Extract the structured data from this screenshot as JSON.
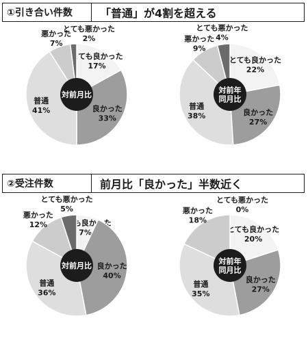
{
  "panels": [
    {
      "label": "①引き合い件数",
      "headline": "「普通」が4割を超える"
    },
    {
      "label": "②受注件数",
      "headline": "前月比「良かった」半数近く"
    }
  ],
  "colors": {
    "とても良かった": "#f3f3f3",
    "良かった": "#9d9d9d",
    "普通": "#dedede",
    "悪かった": "#cccccc",
    "とても悪かった": "#6b6b6b",
    "center": "#1c1c1c"
  },
  "chart_data": [
    {
      "type": "pie",
      "panel": 0,
      "center_label": [
        "対前月比"
      ],
      "slices": [
        {
          "name": "とても良かった",
          "value": 17,
          "label": "17%"
        },
        {
          "name": "良かった",
          "value": 33,
          "label": "33%"
        },
        {
          "name": "普通",
          "value": 41,
          "label": "41%"
        },
        {
          "name": "悪かった",
          "value": 7,
          "label": "7%"
        },
        {
          "name": "とても悪かった",
          "value": 2,
          "label": "2%"
        }
      ]
    },
    {
      "type": "pie",
      "panel": 0,
      "center_label": [
        "対前年",
        "同月比"
      ],
      "slices": [
        {
          "name": "とても良かった",
          "value": 22,
          "label": "22%"
        },
        {
          "name": "良かった",
          "value": 27,
          "label": "27%"
        },
        {
          "name": "普通",
          "value": 38,
          "label": "38%"
        },
        {
          "name": "悪かった",
          "value": 9,
          "label": "9%"
        },
        {
          "name": "とても悪かった",
          "value": 4,
          "label": "4%"
        }
      ]
    },
    {
      "type": "pie",
      "panel": 1,
      "center_label": [
        "対前月比"
      ],
      "slices": [
        {
          "name": "とても良かった",
          "value": 7,
          "label": "7%"
        },
        {
          "name": "良かった",
          "value": 40,
          "label": "40%"
        },
        {
          "name": "普通",
          "value": 36,
          "label": "36%"
        },
        {
          "name": "悪かった",
          "value": 12,
          "label": "12%"
        },
        {
          "name": "とても悪かった",
          "value": 5,
          "label": "5%"
        }
      ]
    },
    {
      "type": "pie",
      "panel": 1,
      "center_label": [
        "対前年",
        "同月比"
      ],
      "slices": [
        {
          "name": "とても良かった",
          "value": 20,
          "label": "20%"
        },
        {
          "name": "良かった",
          "value": 27,
          "label": "27%"
        },
        {
          "name": "普通",
          "value": 35,
          "label": "35%"
        },
        {
          "name": "悪かった",
          "value": 18,
          "label": "18%"
        },
        {
          "name": "とても悪かった",
          "value": 0,
          "label": "0%"
        }
      ]
    }
  ]
}
